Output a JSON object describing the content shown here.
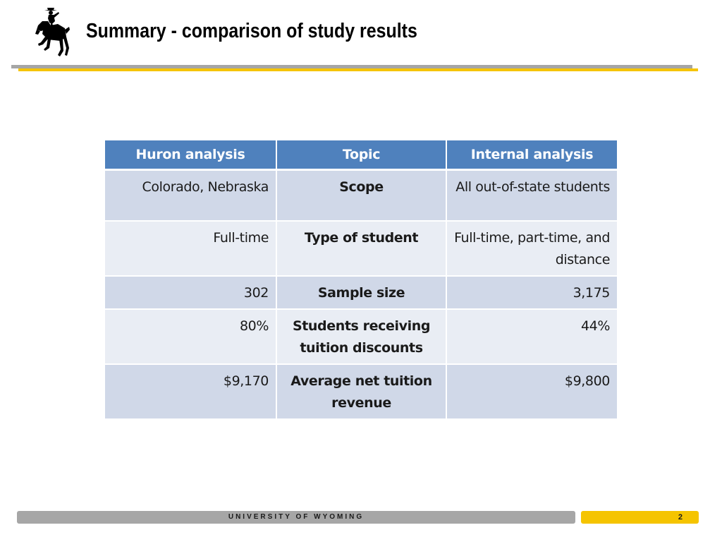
{
  "header": {
    "title": "Summary - comparison of study results",
    "logo_icon": "bucking-horse-rider-icon"
  },
  "table": {
    "headers": [
      "Huron analysis",
      "Topic",
      "Internal analysis"
    ],
    "rows": [
      {
        "huron": "Colorado, Nebraska",
        "topic": "Scope",
        "internal": "All out-of-state students"
      },
      {
        "huron": "Full-time",
        "topic": "Type of student",
        "internal": "Full-time, part-time, and distance"
      },
      {
        "huron": "302",
        "topic": "Sample size",
        "internal": "3,175"
      },
      {
        "huron": "80%",
        "topic": "Students receiving tuition discounts",
        "internal": "44%"
      },
      {
        "huron": "$9,170",
        "topic": "Average net tuition revenue",
        "internal": "$9,800"
      }
    ]
  },
  "footer": {
    "institution": "UNIVERSITY OF WYOMING",
    "page_number": "2"
  },
  "colors": {
    "header_blue": "#4f81bd",
    "row_dark": "#d0d8e8",
    "row_light": "#e9edf4",
    "gold": "#f5c400",
    "gray": "#a6a6a6"
  }
}
